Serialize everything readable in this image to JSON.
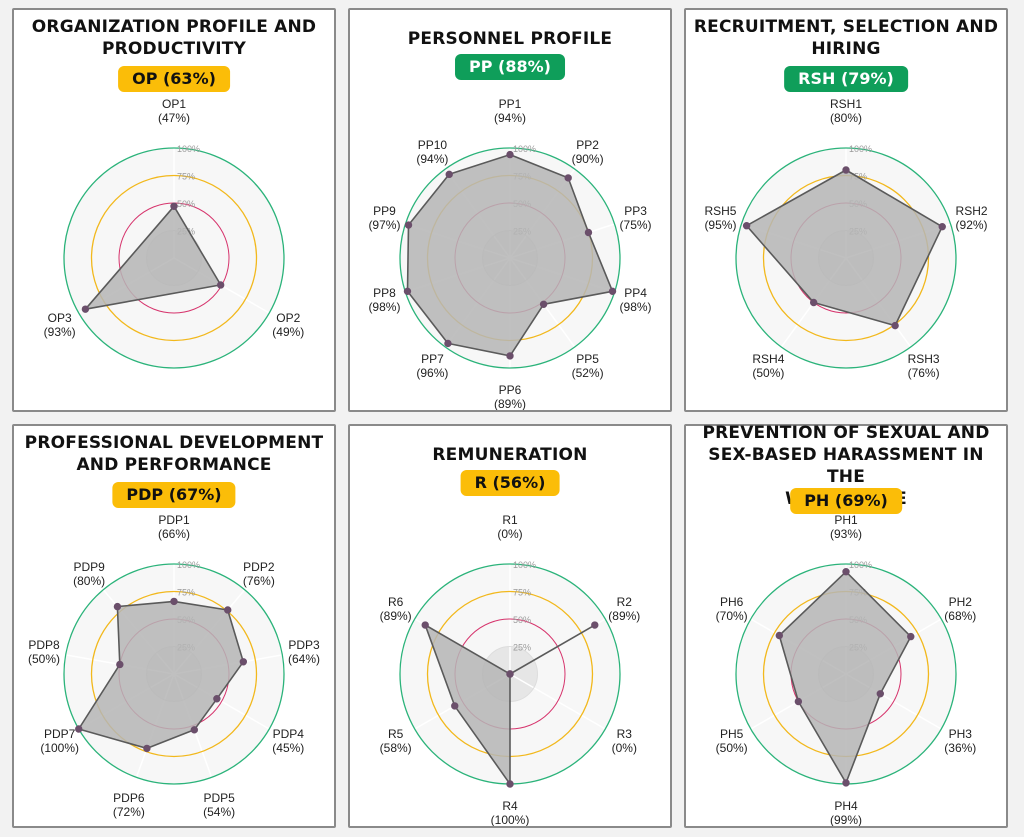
{
  "colors": {
    "yellow": "#fbbd08",
    "green": "#0f9e5a",
    "ring100": "#2bb37a",
    "ring75": "#f2b81c",
    "ring50": "#d6336c",
    "polyFill": "#b5b5b5",
    "polyStroke": "#5a5a5a",
    "point": "#6b4f6b"
  },
  "grid_labels": [
    "25%",
    "50%",
    "75%",
    "100%"
  ],
  "charts": [
    {
      "title_lines": [
        "ORGANIZATION PROFILE AND",
        "PRODUCTIVITY"
      ],
      "badge": "OP (63%)",
      "badge_color": "yellow"
    },
    {
      "title_lines": [
        "PERSONNEL PROFILE"
      ],
      "badge": "PP (88%)",
      "badge_color": "green"
    },
    {
      "title_lines": [
        "RECRUITMENT, SELECTION AND",
        "HIRING"
      ],
      "badge": "RSH (79%)",
      "badge_color": "green"
    },
    {
      "title_lines": [
        "PROFESSIONAL DEVELOPMENT",
        "AND PERFORMANCE"
      ],
      "badge": "PDP (67%)",
      "badge_color": "yellow"
    },
    {
      "title_lines": [
        "REMUNERATION"
      ],
      "badge": "R (56%)",
      "badge_color": "yellow"
    },
    {
      "title_lines": [
        "PREVENTION OF SEXUAL AND",
        "SEX-BASED HARASSMENT IN THE",
        "WORKPLACE"
      ],
      "badge": "PH (69%)",
      "badge_color": "yellow"
    }
  ],
  "chart_data": [
    {
      "type": "radar",
      "title": "ORGANIZATION PROFILE AND PRODUCTIVITY",
      "categories": [
        "OP1",
        "OP2",
        "OP3"
      ],
      "values": [
        47,
        49,
        93
      ],
      "value_labels": [
        "(47%)",
        "(49%)",
        "(93%)"
      ],
      "rlim": [
        0,
        100
      ]
    },
    {
      "type": "radar",
      "title": "PERSONNEL PROFILE",
      "categories": [
        "PP1",
        "PP2",
        "PP3",
        "PP4",
        "PP5",
        "PP6",
        "PP7",
        "PP8",
        "PP9",
        "PP10"
      ],
      "values": [
        94,
        90,
        75,
        98,
        52,
        89,
        96,
        98,
        97,
        94
      ],
      "value_labels": [
        "(94%)",
        "(90%)",
        "(75%)",
        "(98%)",
        "(52%)",
        "(89%)",
        "(96%)",
        "(98%)",
        "(97%)",
        "(94%)"
      ],
      "rlim": [
        0,
        100
      ]
    },
    {
      "type": "radar",
      "title": "RECRUITMENT, SELECTION AND HIRING",
      "categories": [
        "RSH1",
        "RSH2",
        "RSH3",
        "RSH4",
        "RSH5"
      ],
      "values": [
        80,
        92,
        76,
        50,
        95
      ],
      "value_labels": [
        "(80%)",
        "(92%)",
        "(76%)",
        "(50%)",
        "(95%)"
      ],
      "rlim": [
        0,
        100
      ]
    },
    {
      "type": "radar",
      "title": "PROFESSIONAL DEVELOPMENT AND PERFORMANCE",
      "categories": [
        "PDP1",
        "PDP2",
        "PDP3",
        "PDP4",
        "PDP5",
        "PDP6",
        "PDP7",
        "PDP8",
        "PDP9"
      ],
      "values": [
        66,
        76,
        64,
        45,
        54,
        72,
        100,
        50,
        80
      ],
      "value_labels": [
        "(66%)",
        "(76%)",
        "(64%)",
        "(45%)",
        "(54%)",
        "(72%)",
        "(100%)",
        "(50%)",
        "(80%)"
      ],
      "rlim": [
        0,
        100
      ]
    },
    {
      "type": "radar",
      "title": "REMUNERATION",
      "categories": [
        "R1",
        "R2",
        "R3",
        "R4",
        "R5",
        "R6"
      ],
      "values": [
        0,
        89,
        0,
        100,
        58,
        89
      ],
      "value_labels": [
        "(0%)",
        "(89%)",
        "(0%)",
        "(100%)",
        "(58%)",
        "(89%)"
      ],
      "rlim": [
        0,
        100
      ]
    },
    {
      "type": "radar",
      "title": "PREVENTION OF SEXUAL AND SEX-BASED HARASSMENT IN THE WORKPLACE",
      "categories": [
        "PH1",
        "PH2",
        "PH3",
        "PH4",
        "PH5",
        "PH6"
      ],
      "values": [
        93,
        68,
        36,
        99,
        50,
        70
      ],
      "value_labels": [
        "(93%)",
        "(68%)",
        "(36%)",
        "(99%)",
        "(50%)",
        "(70%)"
      ],
      "rlim": [
        0,
        100
      ]
    }
  ]
}
